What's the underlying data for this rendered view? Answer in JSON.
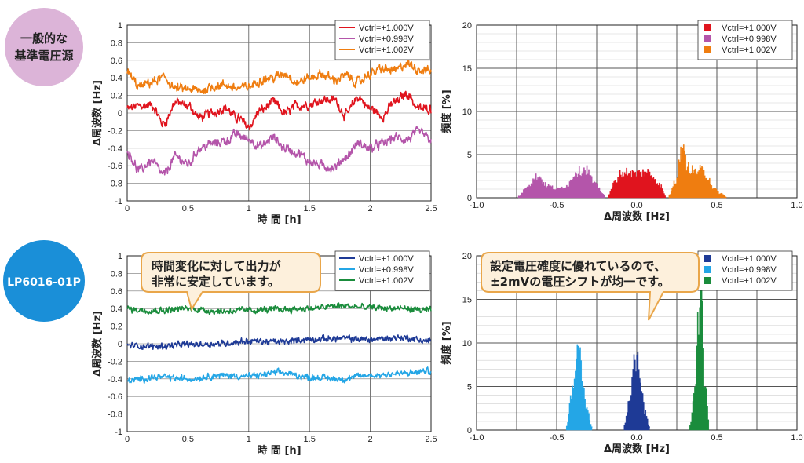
{
  "badges": [
    {
      "lines": [
        "一般的な",
        "基準電圧源"
      ],
      "color": "#dcb4d8",
      "text_color": "#222222"
    },
    {
      "lines": [
        "LP6016-01P"
      ],
      "color": "#1a8fd8",
      "text_color": "#ffffff"
    }
  ],
  "callouts": [
    {
      "lines": [
        "時間変化に対して出力が",
        "非常に安定しています。"
      ]
    },
    {
      "lines": [
        "設定電圧確度に優れているので、",
        "±2mVの電圧シフトが均一です。"
      ]
    }
  ],
  "chart_data": [
    {
      "type": "line",
      "xlabel": "時 間 [h]",
      "ylabel": "Δ周波数 [Hz]",
      "xlim": [
        0,
        2.5
      ],
      "ylim": [
        -1,
        1
      ],
      "xticks": [
        "0",
        "0.5",
        "1",
        "1.5",
        "2",
        "2.5"
      ],
      "yticks": [
        "1",
        "0.8",
        "0.6",
        "0.4",
        "0.2",
        "0",
        "-0.2",
        "-0.4",
        "-0.6",
        "-0.8",
        "-1"
      ],
      "grid": true,
      "legend": "top-right",
      "series": [
        {
          "name": "Vctrl=+1.000V",
          "color": "#e0141e",
          "x": [
            0,
            0.1,
            0.2,
            0.3,
            0.4,
            0.5,
            0.6,
            0.7,
            0.8,
            0.9,
            1.0,
            1.1,
            1.2,
            1.3,
            1.4,
            1.5,
            1.6,
            1.7,
            1.8,
            1.9,
            2.0,
            2.1,
            2.2,
            2.3,
            2.4,
            2.5
          ],
          "y": [
            0.05,
            0.08,
            0.09,
            -0.12,
            0.12,
            0.08,
            -0.05,
            0.0,
            0.06,
            -0.05,
            -0.15,
            0.03,
            0.12,
            0.0,
            0.08,
            0.1,
            0.15,
            0.15,
            -0.02,
            0.18,
            0.05,
            -0.03,
            0.12,
            0.22,
            0.05,
            0.05
          ]
        },
        {
          "name": "Vctrl=+0.998V",
          "color": "#b455aa",
          "x": [
            0,
            0.1,
            0.2,
            0.3,
            0.4,
            0.5,
            0.6,
            0.7,
            0.8,
            0.9,
            1.0,
            1.1,
            1.2,
            1.3,
            1.4,
            1.5,
            1.6,
            1.7,
            1.8,
            1.9,
            2.0,
            2.1,
            2.2,
            2.3,
            2.4,
            2.5
          ],
          "y": [
            -0.45,
            -0.65,
            -0.55,
            -0.7,
            -0.5,
            -0.58,
            -0.4,
            -0.35,
            -0.32,
            -0.25,
            -0.3,
            -0.38,
            -0.28,
            -0.4,
            -0.45,
            -0.55,
            -0.6,
            -0.62,
            -0.5,
            -0.35,
            -0.4,
            -0.35,
            -0.28,
            -0.3,
            -0.22,
            -0.3
          ]
        },
        {
          "name": "Vctrl=+1.002V",
          "color": "#ef7d10",
          "x": [
            0,
            0.1,
            0.2,
            0.3,
            0.4,
            0.5,
            0.6,
            0.7,
            0.8,
            0.9,
            1.0,
            1.1,
            1.2,
            1.3,
            1.4,
            1.5,
            1.6,
            1.7,
            1.8,
            1.9,
            2.0,
            2.1,
            2.2,
            2.3,
            2.4,
            2.5
          ],
          "y": [
            0.45,
            0.3,
            0.35,
            0.4,
            0.28,
            0.27,
            0.25,
            0.3,
            0.32,
            0.28,
            0.3,
            0.38,
            0.4,
            0.45,
            0.35,
            0.4,
            0.44,
            0.38,
            0.42,
            0.35,
            0.45,
            0.5,
            0.48,
            0.56,
            0.5,
            0.48
          ]
        }
      ]
    },
    {
      "type": "area",
      "xlabel": "Δ周波数 [Hz]",
      "ylabel": "頻度 [%]",
      "xlim": [
        -1,
        1
      ],
      "ylim": [
        0,
        20
      ],
      "xticks": [
        "-1.0",
        "-0.5",
        "0.0",
        "0.5",
        "1.0"
      ],
      "yticks": [
        "20",
        "15",
        "10",
        "5",
        "0"
      ],
      "grid": true,
      "legend": "top-right",
      "series": [
        {
          "name": "Vctrl=+1.000V",
          "color": "#e0141e",
          "x": [
            -0.18,
            -0.14,
            -0.1,
            -0.06,
            -0.02,
            0.02,
            0.06,
            0.1,
            0.14,
            0.18
          ],
          "y": [
            0.3,
            1.8,
            2.8,
            3.0,
            2.8,
            2.9,
            3.0,
            2.5,
            1.5,
            0.2
          ]
        },
        {
          "name": "Vctrl=+0.998V",
          "color": "#b455aa",
          "x": [
            -0.74,
            -0.68,
            -0.62,
            -0.56,
            -0.5,
            -0.44,
            -0.38,
            -0.32,
            -0.26,
            -0.2
          ],
          "y": [
            0.2,
            1.5,
            2.5,
            1.4,
            1.0,
            1.4,
            3.0,
            3.3,
            1.5,
            0.3
          ]
        },
        {
          "name": "Vctrl=+1.002V",
          "color": "#ef7d10",
          "x": [
            0.2,
            0.24,
            0.28,
            0.32,
            0.36,
            0.4,
            0.44,
            0.48,
            0.52,
            0.56
          ],
          "y": [
            0.3,
            2.0,
            5.5,
            3.5,
            3.0,
            3.2,
            2.5,
            1.0,
            0.5,
            0.1
          ]
        }
      ]
    },
    {
      "type": "line",
      "xlabel": "時 間 [h]",
      "ylabel": "Δ周波数 [Hz]",
      "xlim": [
        0,
        2.5
      ],
      "ylim": [
        -1,
        1
      ],
      "xticks": [
        "0",
        "0.5",
        "1",
        "1.5",
        "2",
        "2.5"
      ],
      "yticks": [
        "1",
        "0.8",
        "0.6",
        "0.4",
        "0.2",
        "0",
        "-0.2",
        "-0.4",
        "-0.6",
        "-0.8",
        "-1"
      ],
      "grid": true,
      "legend": "top-right",
      "series": [
        {
          "name": "Vctrl=+1.000V",
          "color": "#1e3a96",
          "x": [
            0,
            0.25,
            0.5,
            0.75,
            1.0,
            1.25,
            1.5,
            1.75,
            2.0,
            2.25,
            2.5
          ],
          "y": [
            -0.02,
            -0.03,
            -0.01,
            0.0,
            0.03,
            0.02,
            0.05,
            0.06,
            0.05,
            0.07,
            0.03
          ]
        },
        {
          "name": "Vctrl=+0.998V",
          "color": "#24a6e6",
          "x": [
            0,
            0.25,
            0.5,
            0.75,
            1.0,
            1.25,
            1.5,
            1.75,
            2.0,
            2.25,
            2.5
          ],
          "y": [
            -0.42,
            -0.38,
            -0.4,
            -0.36,
            -0.37,
            -0.33,
            -0.38,
            -0.4,
            -0.36,
            -0.34,
            -0.31
          ]
        },
        {
          "name": "Vctrl=+1.002V",
          "color": "#1a8c3c",
          "x": [
            0,
            0.25,
            0.5,
            0.75,
            1.0,
            1.25,
            1.5,
            1.75,
            2.0,
            2.25,
            2.5
          ],
          "y": [
            0.39,
            0.38,
            0.4,
            0.37,
            0.38,
            0.39,
            0.4,
            0.43,
            0.41,
            0.4,
            0.38
          ]
        }
      ]
    },
    {
      "type": "area",
      "xlabel": "Δ周波数 [Hz]",
      "ylabel": "頻度 [%]",
      "xlim": [
        -1,
        1
      ],
      "ylim": [
        0,
        20
      ],
      "xticks": [
        "-1.0",
        "-0.5",
        "0.0",
        "0.5",
        "1.0"
      ],
      "yticks": [
        "20",
        "15",
        "10",
        "5",
        "0"
      ],
      "grid": true,
      "legend": "top-right",
      "series": [
        {
          "name": "Vctrl=+1.000V",
          "color": "#1e3a96",
          "x": [
            -0.08,
            -0.05,
            -0.02,
            0.0,
            0.02,
            0.05,
            0.08
          ],
          "y": [
            0.5,
            3.0,
            8.5,
            8.0,
            5.0,
            2.0,
            0.3
          ]
        },
        {
          "name": "Vctrl=+0.998V",
          "color": "#24a6e6",
          "x": [
            -0.44,
            -0.41,
            -0.38,
            -0.36,
            -0.34,
            -0.31,
            -0.28
          ],
          "y": [
            0.5,
            4.0,
            8.0,
            10.0,
            6.0,
            2.0,
            0.3
          ]
        },
        {
          "name": "Vctrl=+1.002V",
          "color": "#1a8c3c",
          "x": [
            0.33,
            0.36,
            0.38,
            0.4,
            0.42,
            0.45
          ],
          "y": [
            0.5,
            5.0,
            12.0,
            16.0,
            6.0,
            0.5
          ]
        }
      ]
    }
  ]
}
